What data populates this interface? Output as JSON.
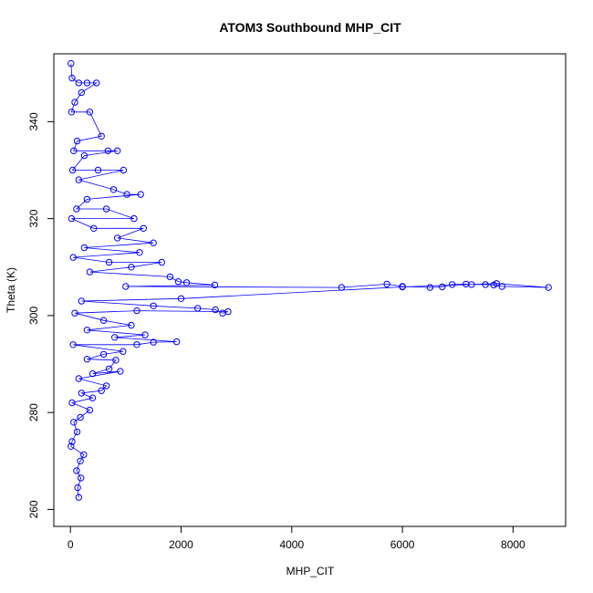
{
  "chart_data": {
    "type": "scatter",
    "title": "ATOM3 Southbound MHP_CIT",
    "xlabel": "MHP_CIT",
    "ylabel": "Theta (K)",
    "xlim": [
      -300,
      8950
    ],
    "ylim": [
      256.5,
      354
    ],
    "x_ticks": [
      0,
      2000,
      4000,
      6000,
      8000
    ],
    "y_ticks": [
      260,
      280,
      300,
      320,
      340
    ],
    "grid": false,
    "legend": "none",
    "marker": "open-circle",
    "connect_points": true,
    "series_color": "#0000ff",
    "series": [
      {
        "points": [
          [
            10,
            352
          ],
          [
            30,
            349
          ],
          [
            150,
            348
          ],
          [
            300,
            348
          ],
          [
            470,
            348
          ],
          [
            200,
            346
          ],
          [
            80,
            344
          ],
          [
            20,
            342
          ],
          [
            350,
            342
          ],
          [
            560,
            337
          ],
          [
            120,
            336
          ],
          [
            60,
            334
          ],
          [
            680,
            334
          ],
          [
            850,
            334
          ],
          [
            250,
            333
          ],
          [
            40,
            330
          ],
          [
            500,
            330
          ],
          [
            960,
            330
          ],
          [
            150,
            328
          ],
          [
            780,
            326
          ],
          [
            1020,
            325
          ],
          [
            1270,
            325
          ],
          [
            300,
            324
          ],
          [
            110,
            322
          ],
          [
            650,
            322
          ],
          [
            1150,
            320
          ],
          [
            20,
            320
          ],
          [
            420,
            318
          ],
          [
            1320,
            318
          ],
          [
            850,
            316
          ],
          [
            1500,
            315
          ],
          [
            250,
            314
          ],
          [
            1250,
            313
          ],
          [
            50,
            312
          ],
          [
            700,
            311
          ],
          [
            1650,
            311
          ],
          [
            1100,
            310
          ],
          [
            350,
            309
          ],
          [
            1800,
            308
          ],
          [
            1950,
            307
          ],
          [
            2100,
            306.8
          ],
          [
            2610,
            306.3
          ],
          [
            1000,
            306
          ],
          [
            4900,
            305.8
          ],
          [
            5720,
            306.5
          ],
          [
            6000,
            306
          ],
          [
            6500,
            305.8
          ],
          [
            6720,
            305.9
          ],
          [
            6900,
            306.4
          ],
          [
            7150,
            306.5
          ],
          [
            7250,
            306.4
          ],
          [
            7500,
            306.4
          ],
          [
            7650,
            306.3
          ],
          [
            7800,
            306
          ],
          [
            8640,
            305.8
          ],
          [
            7700,
            306.6
          ],
          [
            6000,
            305.9
          ],
          [
            2000,
            303.5
          ],
          [
            200,
            303
          ],
          [
            1500,
            302
          ],
          [
            2300,
            301.5
          ],
          [
            2620,
            301.2
          ],
          [
            2750,
            300.5
          ],
          [
            2850,
            300.8
          ],
          [
            1200,
            301
          ],
          [
            80,
            300.5
          ],
          [
            600,
            299
          ],
          [
            1100,
            298
          ],
          [
            300,
            297
          ],
          [
            1350,
            296
          ],
          [
            800,
            295.5
          ],
          [
            1920,
            294.6
          ],
          [
            1500,
            294.5
          ],
          [
            1200,
            294
          ],
          [
            50,
            294
          ],
          [
            950,
            292.6
          ],
          [
            600,
            292
          ],
          [
            300,
            291
          ],
          [
            820,
            290.8
          ],
          [
            700,
            289
          ],
          [
            400,
            288
          ],
          [
            900,
            288.5
          ],
          [
            150,
            287
          ],
          [
            650,
            285.5
          ],
          [
            560,
            284.5
          ],
          [
            200,
            284
          ],
          [
            400,
            283
          ],
          [
            30,
            282
          ],
          [
            350,
            280.5
          ],
          [
            180,
            279
          ],
          [
            60,
            278
          ],
          [
            120,
            276
          ],
          [
            30,
            274
          ],
          [
            10,
            273
          ],
          [
            240,
            271.3
          ],
          [
            180,
            270
          ],
          [
            110,
            268
          ],
          [
            190,
            266.5
          ],
          [
            130,
            264.5
          ],
          [
            150,
            262.5
          ]
        ]
      }
    ]
  }
}
